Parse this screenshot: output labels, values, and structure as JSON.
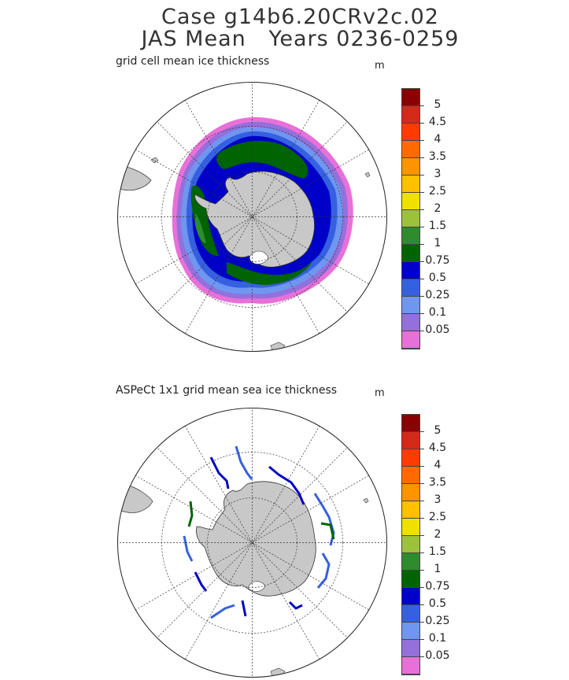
{
  "header": {
    "title_line_1": "Case g14b6.20CRv2c.02",
    "title_line_2": "JAS Mean   Years 0236-0259"
  },
  "panels": [
    {
      "label": "grid cell mean ice thickness",
      "unit": "m"
    },
    {
      "label": "ASPeCt 1x1 grid mean sea ice thickness",
      "unit": "m"
    }
  ],
  "colorbar": {
    "labels": [
      "5",
      "4.5",
      "4",
      "3.5",
      "3",
      "2.5",
      "2",
      "1.5",
      "1",
      "0.75",
      "0.5",
      "0.25",
      "0.1",
      "0.05"
    ],
    "colors": [
      "#8b0000",
      "#d42a1a",
      "#ff3c00",
      "#ff6a00",
      "#ff9400",
      "#ffc000",
      "#f0e000",
      "#9cc23a",
      "#2e8b2e",
      "#006400",
      "#0000c8",
      "#3560e0",
      "#6f96f0",
      "#9370db",
      "#e870d8"
    ]
  },
  "map": {
    "land_color": "#c8c8c8",
    "map_type": "south-polar-stereographic"
  }
}
